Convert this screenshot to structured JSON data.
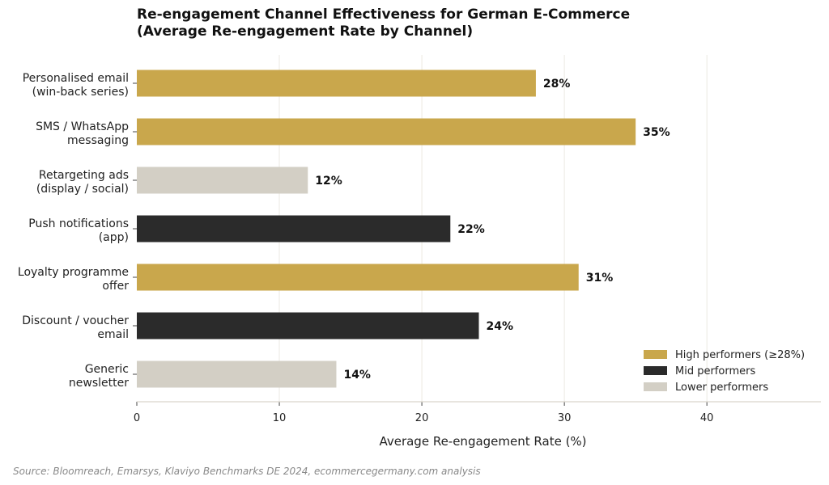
{
  "chart_data": {
    "type": "bar",
    "orientation": "horizontal",
    "title": "Re-engagement Channel Effectiveness for German E-Commerce\n(Average Re-engagement Rate by Channel)",
    "xlabel": "Average Re-engagement Rate (%)",
    "ylabel": "",
    "xlim": [
      0,
      48
    ],
    "xticks": [
      0,
      10,
      20,
      30,
      40
    ],
    "grid": "vertical",
    "legend_position": "bottom-right",
    "categories": [
      [
        "Personalised email",
        "(win-back series)"
      ],
      [
        "SMS / WhatsApp",
        "messaging"
      ],
      [
        "Retargeting ads",
        "(display / social)"
      ],
      [
        "Push notifications",
        "(app)"
      ],
      [
        "Loyalty programme",
        "offer"
      ],
      [
        "Discount / voucher",
        "email"
      ],
      [
        "Generic",
        "newsletter"
      ]
    ],
    "values": [
      28,
      35,
      12,
      22,
      31,
      24,
      14
    ],
    "value_labels": [
      "28%",
      "35%",
      "12%",
      "22%",
      "31%",
      "24%",
      "14%"
    ],
    "groups": [
      "high",
      "high",
      "low",
      "mid",
      "high",
      "mid",
      "low"
    ],
    "legend": [
      {
        "key": "high",
        "label": "High performers (≥28%)",
        "color": "#c9a74c"
      },
      {
        "key": "mid",
        "label": "Mid performers",
        "color": "#2b2b2b"
      },
      {
        "key": "low",
        "label": "Lower performers",
        "color": "#d3cfc5"
      }
    ]
  },
  "source": "Source: Bloomreach, Emarsys, Klaviyo Benchmarks DE 2024, ecommercegermany.com analysis"
}
